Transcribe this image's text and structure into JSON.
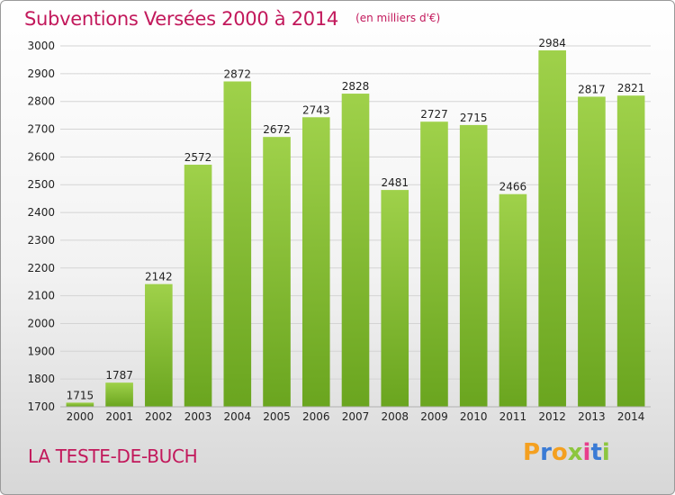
{
  "header": {
    "title": "Subventions Versées 2000 à 2014",
    "subtitle": "(en milliers d'€)"
  },
  "footer": {
    "place": "LA TESTE-DE-BUCH",
    "logo_letters": [
      "P",
      "r",
      "o",
      "x",
      "i",
      "t",
      "i"
    ],
    "logo_colors": [
      "#f4a020",
      "#3a7bd5",
      "#f4a020",
      "#8dc63f",
      "#e83e8c",
      "#3a7bd5",
      "#8dc63f"
    ]
  },
  "colors": {
    "bar_light": "#9fd14a",
    "bar_dark": "#6aa51f",
    "grid": "#d4d4d4",
    "text": "#222222",
    "title": "#c2185b"
  },
  "chart_data": {
    "type": "bar",
    "categories": [
      "2000",
      "2001",
      "2002",
      "2003",
      "2004",
      "2005",
      "2006",
      "2007",
      "2008",
      "2009",
      "2010",
      "2011",
      "2012",
      "2013",
      "2014"
    ],
    "values": [
      1715,
      1787,
      2142,
      2572,
      2872,
      2672,
      2743,
      2828,
      2481,
      2727,
      2715,
      2466,
      2984,
      2817,
      2821
    ],
    "yticks": [
      1700,
      1800,
      1900,
      2000,
      2100,
      2200,
      2300,
      2400,
      2500,
      2600,
      2700,
      2800,
      2900,
      3000
    ],
    "ylim": [
      1700,
      3000
    ],
    "grid": true,
    "xlabel": "",
    "ylabel": ""
  }
}
